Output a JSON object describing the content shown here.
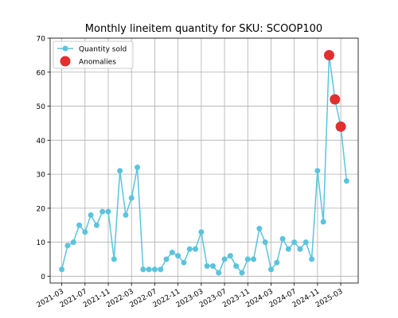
{
  "chart_data": {
    "type": "line",
    "title": "Monthly lineitem quantity for SKU: SCOOP100",
    "series": [
      {
        "name": "Quantity sold",
        "color": "#5bc4dc",
        "marker": "circle",
        "x": [
          "2021-03",
          "2021-04",
          "2021-05",
          "2021-06",
          "2021-07",
          "2021-08",
          "2021-09",
          "2021-10",
          "2021-11",
          "2021-12",
          "2022-01",
          "2022-02",
          "2022-03",
          "2022-04",
          "2022-05",
          "2022-06",
          "2022-07",
          "2022-08",
          "2022-09",
          "2022-10",
          "2022-11",
          "2022-12",
          "2023-01",
          "2023-02",
          "2023-03",
          "2023-04",
          "2023-05",
          "2023-06",
          "2023-07",
          "2023-08",
          "2023-09",
          "2023-10",
          "2023-11",
          "2023-12",
          "2024-01",
          "2024-02",
          "2024-03",
          "2024-04",
          "2024-05",
          "2024-06",
          "2024-07",
          "2024-08",
          "2024-09",
          "2024-10",
          "2024-11",
          "2024-12",
          "2025-01",
          "2025-02",
          "2025-03",
          "2025-04"
        ],
        "values": [
          2,
          9,
          10,
          15,
          13,
          18,
          15,
          19,
          19,
          5,
          31,
          18,
          23,
          32,
          2,
          2,
          2,
          2,
          5,
          7,
          6,
          4,
          8,
          8,
          13,
          3,
          3,
          1,
          5,
          6,
          3,
          1,
          5,
          5,
          14,
          10,
          2,
          4,
          11,
          8,
          10,
          8,
          10,
          5,
          31,
          16,
          65,
          52,
          44,
          28
        ]
      },
      {
        "name": "Anomalies",
        "color": "#e03030",
        "marker": "circle",
        "line": false,
        "x": [
          "2025-01",
          "2025-02",
          "2025-03"
        ],
        "values": [
          65,
          52,
          44
        ]
      }
    ],
    "xlim": [
      "2021-01",
      "2025-06"
    ],
    "xticks": [
      "2021-03",
      "2021-07",
      "2021-11",
      "2022-03",
      "2022-07",
      "2022-11",
      "2023-03",
      "2023-07",
      "2023-11",
      "2024-03",
      "2024-07",
      "2024-11",
      "2025-03"
    ],
    "ylim": [
      -2,
      70
    ],
    "yticks": [
      0,
      10,
      20,
      30,
      40,
      50,
      60,
      70
    ],
    "grid": true,
    "legend": "upper left"
  }
}
